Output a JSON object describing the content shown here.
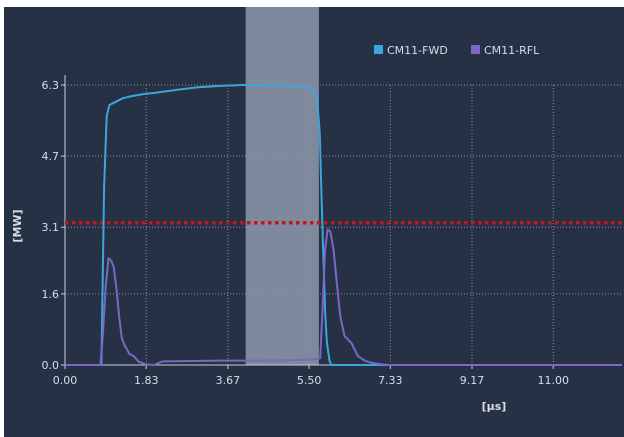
{
  "chart_data": {
    "type": "line",
    "xlabel": "[µs]",
    "ylabel": "[MW]",
    "xticks": [
      "0.00",
      "1.83",
      "3.67",
      "5.50",
      "7.33",
      "9.17",
      "11.00"
    ],
    "yticks": [
      "0.0",
      "1.6",
      "3.1",
      "4.7",
      "6.3"
    ],
    "xlim": [
      0,
      12.55
    ],
    "ylim": [
      0,
      6.3
    ],
    "grid": true,
    "legend_position": "top-right",
    "threshold": {
      "value": 3.2,
      "color": "#c01818",
      "style": "dotted"
    },
    "highlight_band": {
      "x_start": 4.07,
      "x_end": 5.72,
      "color": "#8893a6"
    },
    "series": [
      {
        "name": "CM11-FWD",
        "color": "#3aa6dc",
        "x": [
          0,
          0.82,
          0.88,
          0.94,
          1.0,
          1.1,
          1.3,
          1.5,
          1.8,
          2.0,
          2.2,
          2.6,
          3.0,
          3.5,
          4.0,
          4.5,
          5.0,
          5.4,
          5.6,
          5.68,
          5.74,
          5.78,
          5.82,
          5.86,
          5.9,
          5.96,
          6.0,
          12.55
        ],
        "y": [
          0,
          0,
          4.0,
          5.6,
          5.85,
          5.9,
          6.0,
          6.05,
          6.1,
          6.12,
          6.15,
          6.2,
          6.25,
          6.28,
          6.3,
          6.3,
          6.28,
          6.25,
          6.2,
          6.0,
          5.2,
          3.8,
          2.5,
          1.2,
          0.5,
          0.1,
          0,
          0
        ]
      },
      {
        "name": "CM11-RFL",
        "color": "#7a68c4",
        "x": [
          0,
          0.8,
          0.86,
          0.92,
          0.98,
          1.04,
          1.1,
          1.16,
          1.22,
          1.28,
          1.34,
          1.45,
          1.55,
          1.65,
          1.8,
          2.0,
          2.2,
          3.5,
          4.5,
          5.5,
          5.75,
          5.8,
          5.86,
          5.92,
          5.98,
          6.05,
          6.12,
          6.2,
          6.3,
          6.45,
          6.6,
          6.75,
          6.9,
          7.1,
          7.3,
          12.55
        ],
        "y": [
          0,
          0,
          0.8,
          1.8,
          2.4,
          2.35,
          2.2,
          1.7,
          1.1,
          0.6,
          0.45,
          0.25,
          0.2,
          0.08,
          0.02,
          0,
          0.08,
          0.1,
          0.1,
          0.12,
          0.15,
          1.2,
          2.6,
          3.05,
          3.0,
          2.6,
          1.9,
          1.1,
          0.65,
          0.5,
          0.2,
          0.1,
          0.05,
          0.02,
          0,
          0
        ]
      }
    ]
  }
}
